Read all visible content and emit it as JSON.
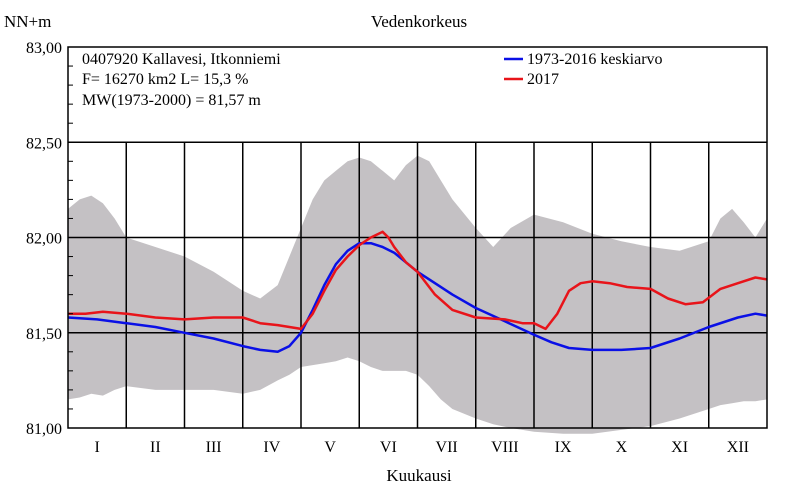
{
  "chart_data": {
    "type": "area",
    "title": "Vedenkorkeus",
    "ylabel": "NN+m",
    "xlabel": "Kuukausi",
    "ylim": [
      81.0,
      83.0
    ],
    "xlim": [
      0,
      12
    ],
    "yticks": [
      81.0,
      81.5,
      82.0,
      82.5,
      83.0
    ],
    "ytick_labels": [
      "81,00",
      "81,50",
      "82,00",
      "82,50",
      "83,00"
    ],
    "categories": [
      "I",
      "II",
      "III",
      "IV",
      "V",
      "VI",
      "VII",
      "VIII",
      "IX",
      "X",
      "XI",
      "XII"
    ],
    "grid": "on",
    "legend_position": "top-right",
    "info_lines": [
      "0407920 Kallavesi, Itkonniemi",
      "F=  16270 km2 L=  15,3 %",
      "MW(1973-2000) = 81,57 m"
    ],
    "band": {
      "color": "#c4c1c4",
      "x": [
        0,
        0.2,
        0.4,
        0.6,
        0.8,
        1.0,
        1.5,
        2.0,
        2.5,
        3.0,
        3.3,
        3.6,
        3.8,
        4.0,
        4.2,
        4.4,
        4.6,
        4.8,
        5.0,
        5.2,
        5.4,
        5.6,
        5.8,
        6.0,
        6.2,
        6.4,
        6.6,
        7.0,
        7.3,
        7.6,
        8.0,
        8.5,
        9.0,
        9.5,
        10.0,
        10.5,
        11.0,
        11.2,
        11.4,
        11.6,
        11.8,
        12.0
      ],
      "upper": [
        82.15,
        82.2,
        82.22,
        82.18,
        82.1,
        82.0,
        81.95,
        81.9,
        81.82,
        81.72,
        81.68,
        81.75,
        81.9,
        82.05,
        82.2,
        82.3,
        82.35,
        82.4,
        82.42,
        82.4,
        82.35,
        82.3,
        82.38,
        82.43,
        82.4,
        82.3,
        82.2,
        82.05,
        81.95,
        82.05,
        82.12,
        82.08,
        82.02,
        81.98,
        81.95,
        81.93,
        81.98,
        82.1,
        82.15,
        82.08,
        82.0,
        82.1
      ],
      "lower": [
        81.15,
        81.16,
        81.18,
        81.17,
        81.2,
        81.22,
        81.2,
        81.2,
        81.2,
        81.18,
        81.2,
        81.25,
        81.28,
        81.32,
        81.33,
        81.34,
        81.35,
        81.37,
        81.35,
        81.32,
        81.3,
        81.3,
        81.3,
        81.28,
        81.22,
        81.15,
        81.1,
        81.05,
        81.02,
        81.0,
        80.98,
        80.97,
        80.97,
        80.99,
        81.01,
        81.05,
        81.1,
        81.12,
        81.13,
        81.14,
        81.14,
        81.15
      ]
    },
    "series": [
      {
        "name": "1973-2016 keskiarvo",
        "color": "#0a10e6",
        "x": [
          0,
          0.5,
          1.0,
          1.5,
          2.0,
          2.5,
          3.0,
          3.3,
          3.6,
          3.8,
          4.0,
          4.2,
          4.4,
          4.6,
          4.8,
          5.0,
          5.2,
          5.4,
          5.6,
          5.8,
          6.0,
          6.3,
          6.6,
          7.0,
          7.5,
          8.0,
          8.3,
          8.6,
          9.0,
          9.5,
          10.0,
          10.5,
          11.0,
          11.5,
          11.8,
          12.0
        ],
        "values": [
          81.58,
          81.57,
          81.55,
          81.53,
          81.5,
          81.47,
          81.43,
          81.41,
          81.4,
          81.43,
          81.5,
          81.62,
          81.75,
          81.86,
          81.93,
          81.97,
          81.97,
          81.95,
          81.92,
          81.87,
          81.82,
          81.76,
          81.7,
          81.63,
          81.56,
          81.49,
          81.45,
          81.42,
          81.41,
          81.41,
          81.42,
          81.47,
          81.53,
          81.58,
          81.6,
          81.59
        ]
      },
      {
        "name": "2017",
        "color": "#e8141a",
        "x": [
          0,
          0.3,
          0.6,
          1.0,
          1.5,
          2.0,
          2.5,
          3.0,
          3.3,
          3.6,
          3.8,
          4.0,
          4.2,
          4.4,
          4.6,
          4.8,
          5.0,
          5.2,
          5.4,
          5.5,
          5.6,
          5.8,
          6.0,
          6.3,
          6.6,
          7.0,
          7.5,
          7.8,
          8.0,
          8.2,
          8.4,
          8.6,
          8.8,
          9.0,
          9.3,
          9.6,
          10.0,
          10.3,
          10.6,
          10.9,
          11.2,
          11.5,
          11.8,
          12.0
        ],
        "values": [
          81.6,
          81.6,
          81.61,
          81.6,
          81.58,
          81.57,
          81.58,
          81.58,
          81.55,
          81.54,
          81.53,
          81.52,
          81.6,
          81.72,
          81.83,
          81.9,
          81.96,
          82.0,
          82.03,
          82.0,
          81.95,
          81.87,
          81.82,
          81.7,
          81.62,
          81.58,
          81.57,
          81.55,
          81.55,
          81.52,
          81.6,
          81.72,
          81.76,
          81.77,
          81.76,
          81.74,
          81.73,
          81.68,
          81.65,
          81.66,
          81.73,
          81.76,
          81.79,
          81.78
        ]
      }
    ]
  }
}
